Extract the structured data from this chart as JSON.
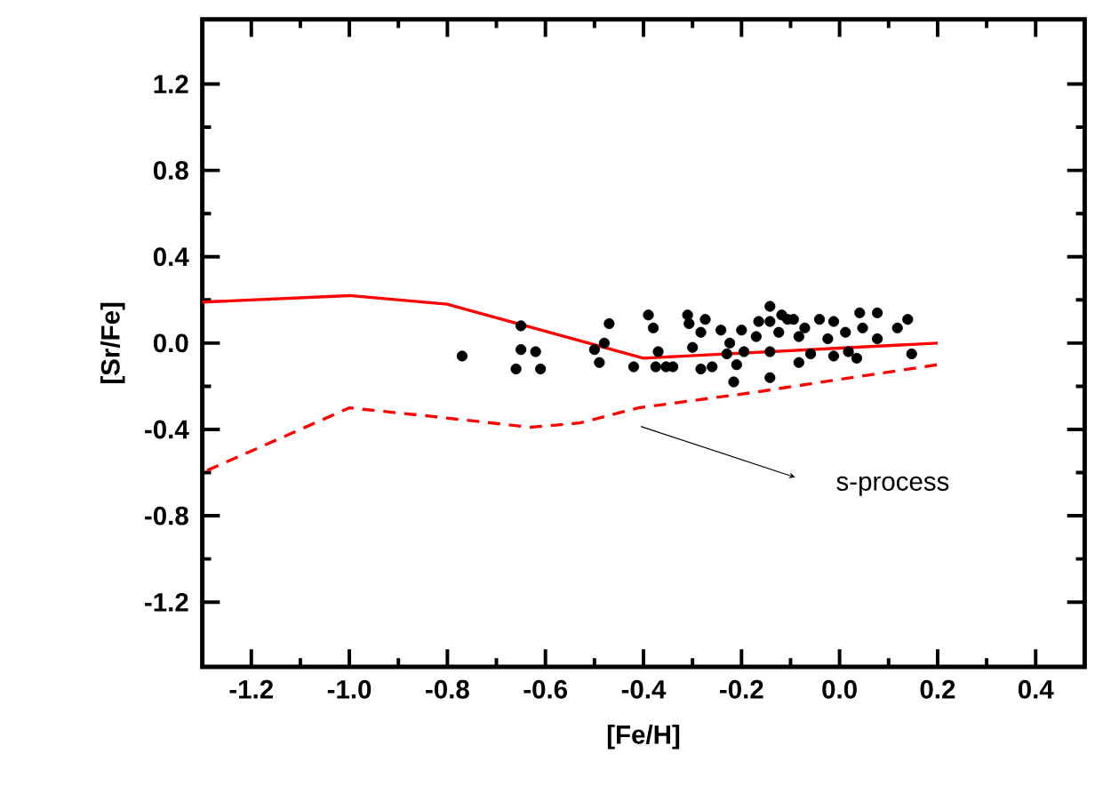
{
  "chart_data": {
    "type": "scatter",
    "xlabel": "[Fe/H]",
    "ylabel": "[Sr/Fe]",
    "marker": "circle",
    "xlim": [
      -1.3,
      0.5
    ],
    "ylim": [
      -1.5,
      1.5
    ],
    "xticks": [
      -1.2,
      {
        "value": -1.0,
        "label": "-1.0"
      },
      -0.8,
      -0.6,
      -0.4,
      -0.2,
      {
        "value": 0,
        "label": "0.0"
      },
      0.2,
      0.4
    ],
    "yticks": [
      -1.2,
      -0.8,
      -0.4,
      {
        "value": 0,
        "label": "0.0"
      },
      0.4,
      0.8,
      1.2
    ],
    "annotations": [
      "s-process"
    ],
    "series": [
      {
        "color": "#000000",
        "x": [
          -0.77,
          -0.65,
          -0.65,
          -0.62,
          -0.66,
          -0.61,
          -0.47,
          -0.48,
          -0.5,
          -0.49,
          -0.42,
          -0.39,
          -0.38,
          -0.37,
          -0.375,
          -0.354,
          -0.34,
          -0.31,
          -0.307,
          -0.274,
          -0.283,
          -0.3,
          -0.283,
          -0.26,
          -0.242,
          -0.224,
          -0.23,
          -0.21,
          -0.216,
          -0.2,
          -0.195,
          -0.165,
          -0.17,
          -0.142,
          -0.142,
          -0.142,
          -0.142,
          -0.118,
          -0.124,
          -0.094,
          -0.083,
          -0.071,
          -0.083,
          -0.059,
          -0.041,
          -0.012,
          -0.012,
          -0.024,
          0.012,
          0.018,
          0.041,
          0.047,
          0.035,
          0.077,
          0.077,
          0.118,
          0.139,
          0.147,
          -0.106
        ],
        "values": [
          -0.06,
          0.08,
          -0.03,
          -0.04,
          -0.12,
          -0.12,
          0.09,
          0.0,
          -0.03,
          -0.09,
          -0.11,
          0.13,
          0.07,
          -0.04,
          -0.11,
          -0.11,
          -0.11,
          0.13,
          0.09,
          0.11,
          0.05,
          -0.02,
          -0.12,
          -0.11,
          0.06,
          0.0,
          -0.05,
          -0.1,
          -0.18,
          0.06,
          -0.04,
          0.1,
          0.03,
          0.17,
          0.1,
          -0.04,
          -0.16,
          0.13,
          0.05,
          0.11,
          0.03,
          0.07,
          -0.09,
          -0.05,
          0.11,
          0.1,
          -0.06,
          0.02,
          0.05,
          -0.04,
          0.14,
          0.07,
          -0.07,
          0.14,
          0.02,
          0.07,
          0.11,
          -0.05,
          0.11
        ]
      },
      {
        "type": "line",
        "color": "#ff0000",
        "line_style": "solid",
        "marker": "none",
        "x": [
          -1.3,
          -1.0,
          -0.8,
          -0.4,
          0.2
        ],
        "values": [
          0.19,
          0.22,
          0.18,
          -0.07,
          0.0
        ]
      },
      {
        "type": "line",
        "color": "#ff0000",
        "line_style": "dashed",
        "marker": "none",
        "x": [
          -1.29,
          -1.12,
          -1.0,
          -0.83,
          -0.63,
          -0.53,
          -0.41,
          -0.18,
          0.2
        ],
        "values": [
          -0.59,
          -0.42,
          -0.3,
          -0.34,
          -0.39,
          -0.37,
          -0.3,
          -0.23,
          -0.1
        ]
      }
    ]
  }
}
